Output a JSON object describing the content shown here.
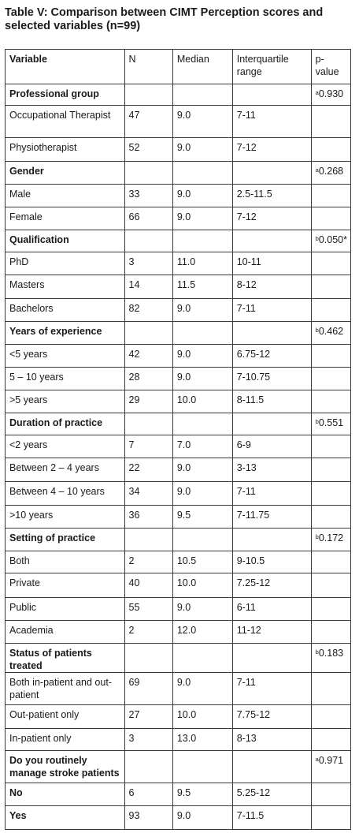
{
  "caption": "Table V: Comparison between CIMT Perception scores and selected variables (n=99)",
  "headers": [
    "Variable",
    "N",
    "Median",
    "Interquartile range",
    "p-value"
  ],
  "rows": [
    {
      "cells": [
        "Professional group",
        "",
        "",
        "",
        "0.930"
      ],
      "sup": "a",
      "header": true,
      "h": 27
    },
    {
      "cells": [
        "Occupational Therapist",
        "47",
        "9.0",
        "7-11",
        ""
      ],
      "h": 41
    },
    {
      "cells": [
        "Physiotherapist",
        "52",
        "9.0",
        "7-12",
        ""
      ],
      "h": 30
    },
    {
      "cells": [
        "Gender",
        "",
        "",
        "",
        "0.268"
      ],
      "sup": "a",
      "header": true,
      "h": 29
    },
    {
      "cells": [
        "Male",
        "33",
        "9.0",
        "2.5-11.5",
        ""
      ],
      "h": 29
    },
    {
      "cells": [
        "Female",
        "66",
        "9.0",
        "7-12",
        ""
      ],
      "h": 29
    },
    {
      "cells": [
        "Qualification",
        "",
        "",
        "",
        "0.050*"
      ],
      "sup": "b",
      "header": true,
      "h": 28
    },
    {
      "cells": [
        "PhD",
        "3",
        "11.0",
        "10-11",
        ""
      ],
      "h": 29
    },
    {
      "cells": [
        "Masters",
        "14",
        "11.5",
        "8-12",
        ""
      ],
      "h": 30
    },
    {
      "cells": [
        "Bachelors",
        "82",
        "9.0",
        "7-11",
        ""
      ],
      "h": 29
    },
    {
      "cells": [
        "Years of experience",
        "",
        "",
        "",
        "0.462"
      ],
      "sup": "b",
      "header": true,
      "h": 29
    },
    {
      "cells": [
        "<5 years",
        "42",
        "9.0",
        "6.75-12",
        ""
      ],
      "h": 29
    },
    {
      "cells": [
        "5 – 10 years",
        "28",
        "9.0",
        "7-10.75",
        ""
      ],
      "h": 29
    },
    {
      "cells": [
        ">5 years",
        "29",
        "10.0",
        "8-11.5",
        ""
      ],
      "h": 29
    },
    {
      "cells": [
        "Duration of practice",
        "",
        "",
        "",
        "0.551"
      ],
      "sup": "b",
      "header": true,
      "h": 28
    },
    {
      "cells": [
        "<2 years",
        "7",
        "7.0",
        "6-9",
        ""
      ],
      "h": 29
    },
    {
      "cells": [
        "Between 2 – 4 years",
        "22",
        "9.0",
        "3-13",
        ""
      ],
      "h": 30
    },
    {
      "cells": [
        "Between 4 – 10 years",
        "34",
        "9.0",
        "7-11",
        ""
      ],
      "h": 30
    },
    {
      "cells": [
        ">10 years",
        "36",
        "9.5",
        "7-11.75",
        ""
      ],
      "h": 29
    },
    {
      "cells": [
        "Setting of practice",
        "",
        "",
        "",
        "0.172"
      ],
      "sup": "b",
      "header": true,
      "h": 29
    },
    {
      "cells": [
        "Both",
        "2",
        "10.5",
        "9-10.5",
        ""
      ],
      "h": 28
    },
    {
      "cells": [
        "Private",
        "40",
        "10.0",
        "7.25-12",
        ""
      ],
      "h": 31
    },
    {
      "cells": [
        "Public",
        "55",
        "9.0",
        "6-11",
        ""
      ],
      "h": 29
    },
    {
      "cells": [
        "Academia",
        "2",
        "12.0",
        "11-12",
        ""
      ],
      "h": 29
    },
    {
      "cells": [
        "Status of patients treated",
        "",
        "",
        "",
        "0.183"
      ],
      "sup": "b",
      "header": true,
      "h": 28
    },
    {
      "cells": [
        "Both in-patient and out-patient",
        "69",
        "9.0",
        "7-11",
        ""
      ],
      "h": 41
    },
    {
      "cells": [
        "Out-patient only",
        "27",
        "10.0",
        "7.75-12",
        ""
      ],
      "h": 30
    },
    {
      "cells": [
        "In-patient only",
        "3",
        "13.0",
        "8-13",
        ""
      ],
      "h": 28
    },
    {
      "cells": [
        "Do you routinely manage stroke patients",
        "",
        "",
        "",
        "0.971"
      ],
      "sup": "a",
      "header": true,
      "h": 41
    },
    {
      "cells": [
        "No",
        "6",
        "9.5",
        "5.25-12",
        ""
      ],
      "header": true,
      "plainData": true,
      "h": 29
    },
    {
      "cells": [
        "Yes",
        "93",
        "9.0",
        "7-11.5",
        ""
      ],
      "header": true,
      "plainData": true,
      "h": 30
    }
  ]
}
